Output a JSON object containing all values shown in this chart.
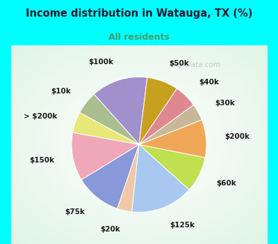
{
  "title": "Income distribution in Watauga, TX (%)",
  "subtitle": "All residents",
  "title_color": "#1a1a2e",
  "subtitle_color": "#4a9a6a",
  "bg_cyan": "#00ffff",
  "bg_chart_center": "#e8f5ee",
  "watermark": "City-Data.com",
  "labels": [
    "$100k",
    "$10k",
    "> $200k",
    "$150k",
    "$75k",
    "$20k",
    "$125k",
    "$60k",
    "$200k",
    "$30k",
    "$40k",
    "$50k"
  ],
  "values": [
    13.5,
    5.5,
    5.0,
    11.5,
    11.0,
    3.5,
    15.0,
    8.5,
    9.0,
    4.0,
    5.5,
    7.5
  ],
  "colors": [
    "#a090cc",
    "#aabf90",
    "#e8e878",
    "#f0a8b8",
    "#8898d8",
    "#f0c8a8",
    "#a8c8f0",
    "#c0e050",
    "#f0a858",
    "#c8b898",
    "#e08890",
    "#c8a020"
  ],
  "startangle": 83,
  "labeldistance": 1.28,
  "label_fontsize": 7.5
}
